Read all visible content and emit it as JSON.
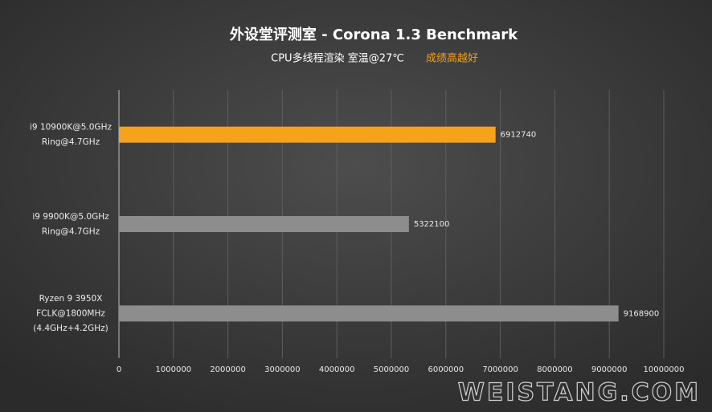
{
  "chart_data": {
    "type": "barh",
    "title": "外设堂评测室 - Corona 1.3 Benchmark",
    "subtitle": "CPU多线程渲染  室温@27℃",
    "note": "成绩高越好",
    "categories": [
      [
        "i9 10900K@5.0GHz",
        "Ring@4.7GHz"
      ],
      [
        "i9 9900K@5.0GHz",
        "Ring@4.7GHz"
      ],
      [
        "Ryzen 9 3950X",
        "FCLK@1800MHz",
        "(4.4GHz+4.2GHz)"
      ]
    ],
    "values": [
      6912740,
      5322100,
      9168900
    ],
    "colors": [
      "#f7a21b",
      "#8d8d8d",
      "#8d8d8d"
    ],
    "xlim": [
      0,
      10000000
    ],
    "xticks": [
      0,
      1000000,
      2000000,
      3000000,
      4000000,
      5000000,
      6000000,
      7000000,
      8000000,
      9000000,
      10000000
    ],
    "grid": true,
    "watermark": "WEISTANG.COM"
  }
}
